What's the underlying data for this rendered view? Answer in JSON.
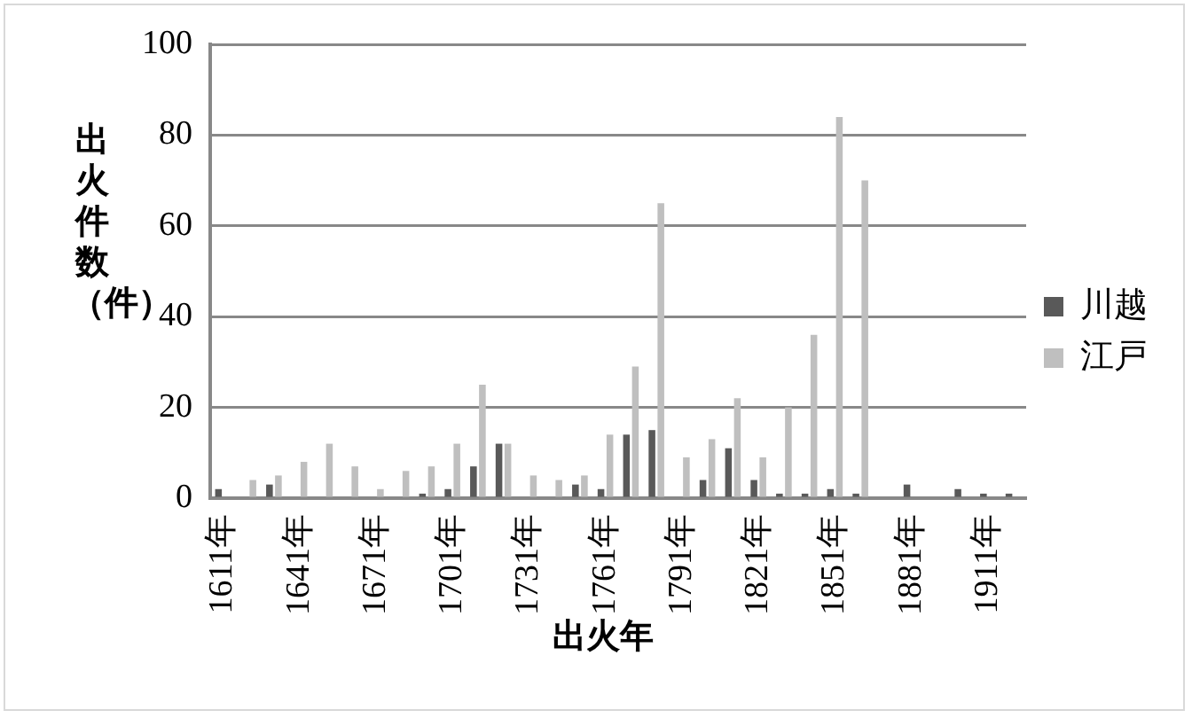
{
  "chart_data": {
    "type": "bar",
    "xlabel": "出火年",
    "ylabel": "出火件数（件）",
    "categories": [
      "1611年",
      null,
      null,
      "1641年",
      null,
      null,
      "1671年",
      null,
      null,
      "1701年",
      null,
      null,
      "1731年",
      null,
      null,
      "1761年",
      null,
      null,
      "1791年",
      null,
      null,
      "1821年",
      null,
      null,
      "1851年",
      null,
      null,
      "1881年",
      null,
      null,
      "1911年",
      null
    ],
    "series": [
      {
        "name": "川越",
        "color": "#595959",
        "values": [
          2,
          0,
          3,
          0,
          0,
          0,
          0,
          0,
          1,
          2,
          7,
          12,
          0,
          0,
          3,
          2,
          14,
          15,
          0,
          4,
          11,
          4,
          1,
          1,
          2,
          1,
          0,
          3,
          0,
          2,
          1,
          1
        ]
      },
      {
        "name": "江戸",
        "color": "#bfbfbf",
        "values": [
          0,
          4,
          5,
          8,
          12,
          7,
          2,
          6,
          7,
          12,
          25,
          12,
          5,
          4,
          5,
          14,
          29,
          65,
          9,
          13,
          22,
          9,
          20,
          36,
          84,
          70,
          0,
          0,
          0,
          0,
          0,
          0
        ]
      }
    ],
    "ylim": [
      0,
      100
    ],
    "yticks": [
      0,
      20,
      40,
      60,
      80,
      100
    ],
    "grid": "y",
    "legend": "right"
  }
}
